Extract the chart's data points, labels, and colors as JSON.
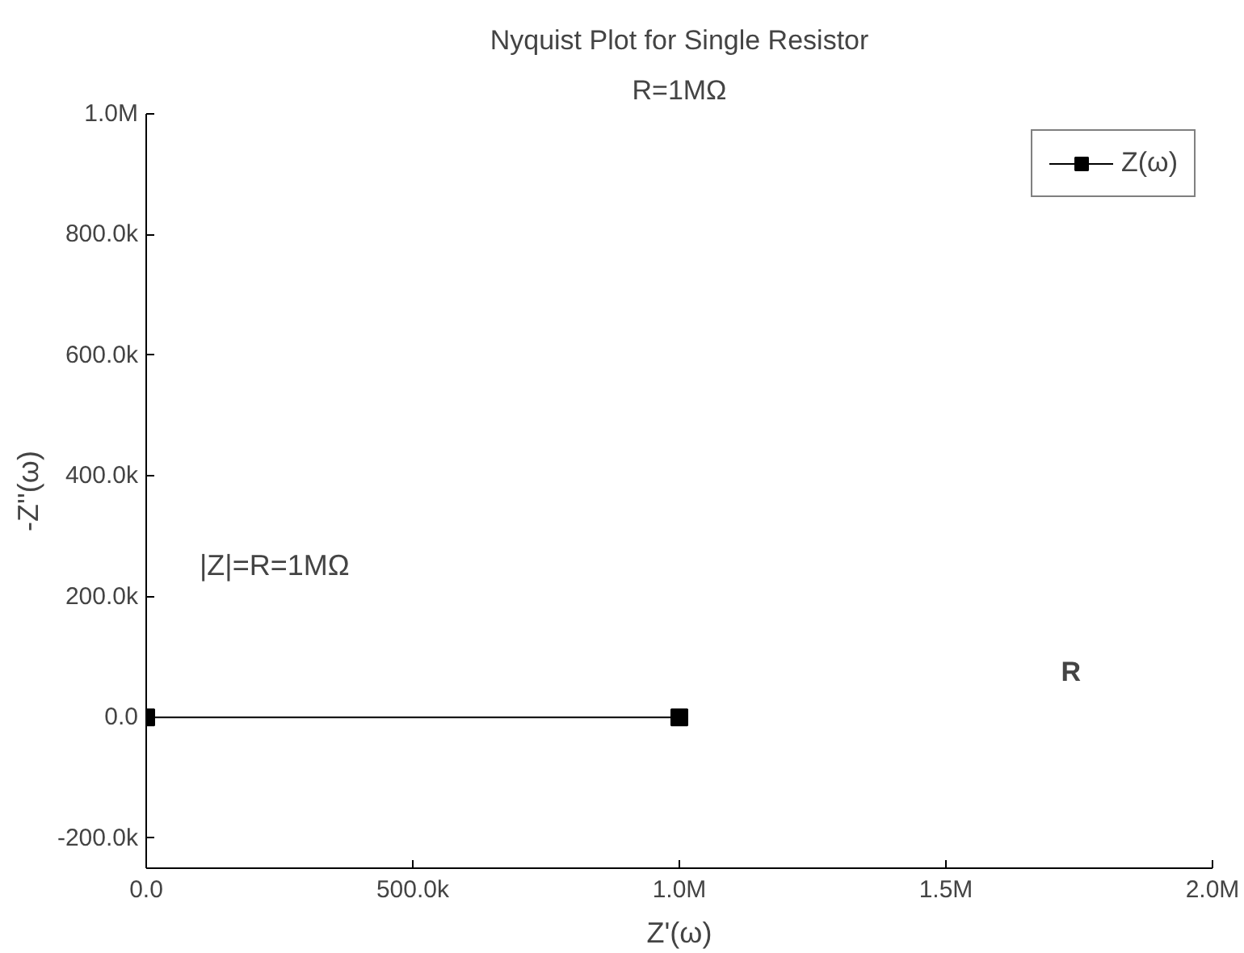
{
  "chart_data": {
    "type": "line",
    "title": "Nyquist Plot for Single Resistor",
    "subtitle": "R=1MΩ",
    "xlabel": "Z'(ω)",
    "ylabel": "-Z''(ω)",
    "x": [
      0,
      1000000
    ],
    "series": [
      {
        "name": "Z(ω)",
        "color": "#000000",
        "values": [
          0,
          0
        ]
      }
    ],
    "xlim": [
      0,
      2000000
    ],
    "ylim": [
      -250000,
      1000000
    ],
    "xticks": [
      {
        "value": 0,
        "label": "0.0"
      },
      {
        "value": 500000,
        "label": "500.0k"
      },
      {
        "value": 1000000,
        "label": "1.0M"
      },
      {
        "value": 1500000,
        "label": "1.5M"
      },
      {
        "value": 2000000,
        "label": "2.0M"
      }
    ],
    "yticks": [
      {
        "value": -200000,
        "label": "-200.0k"
      },
      {
        "value": 0,
        "label": "0.0"
      },
      {
        "value": 200000,
        "label": "200.0k"
      },
      {
        "value": 400000,
        "label": "400.0k"
      },
      {
        "value": 600000,
        "label": "600.0k"
      },
      {
        "value": 800000,
        "label": "800.0k"
      },
      {
        "value": 1000000,
        "label": "1.0M"
      }
    ],
    "annotations": [
      "|Z|=R=1MΩ",
      "R"
    ],
    "marker": "square",
    "line_style": "solid",
    "grid": false,
    "legend": "top right"
  }
}
